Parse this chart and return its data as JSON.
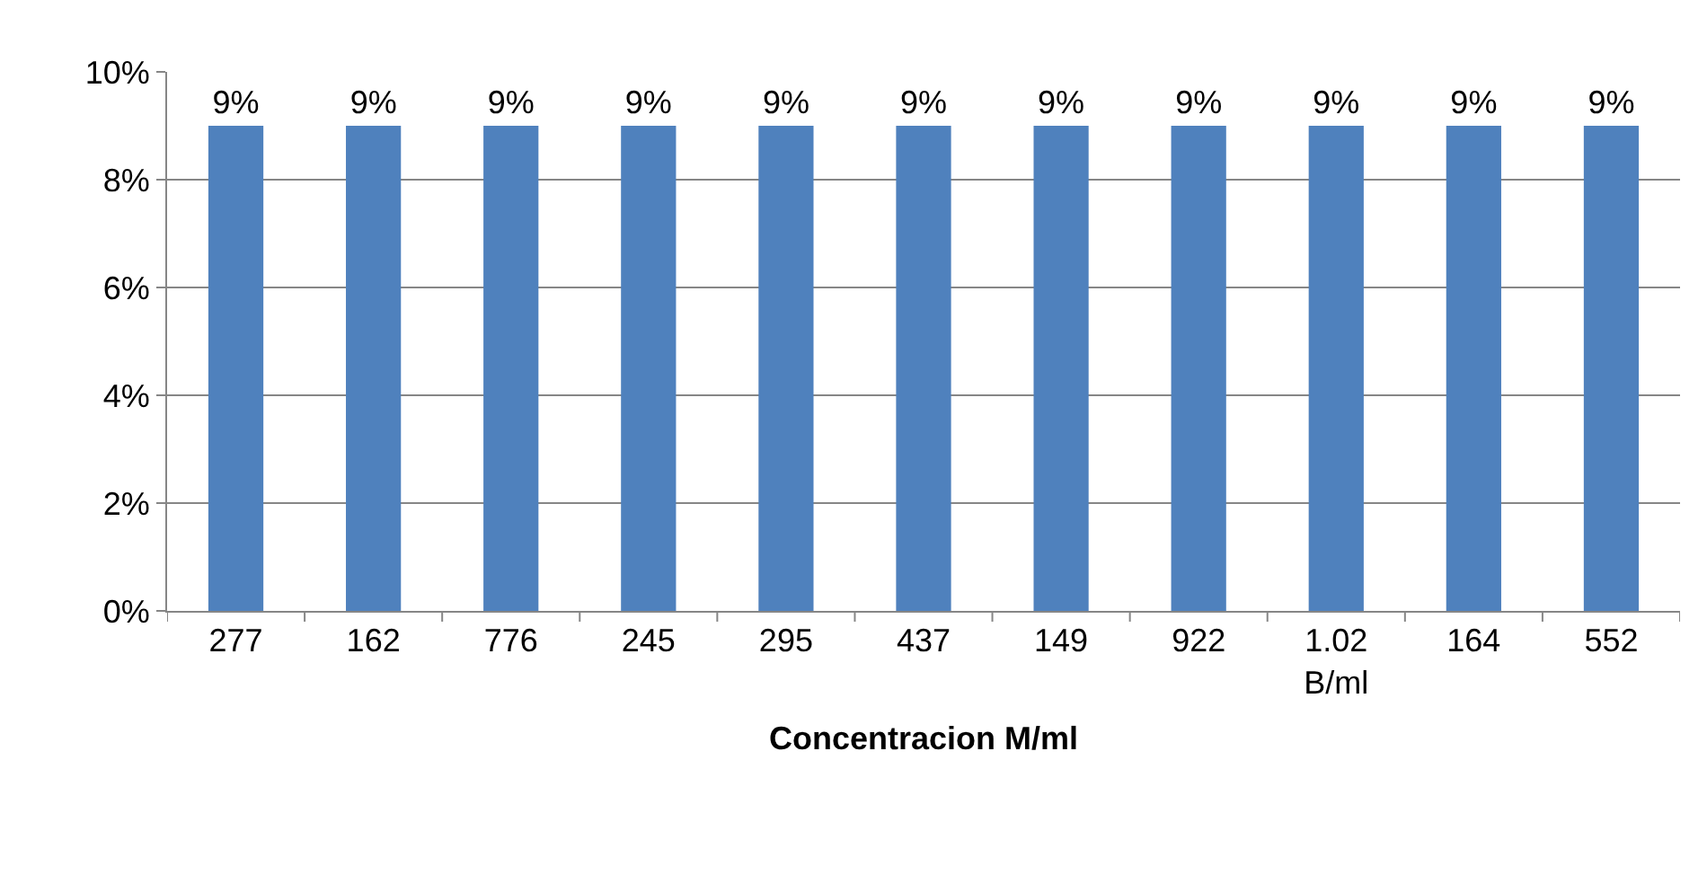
{
  "chart_data": {
    "type": "bar",
    "xlabel": "Concentracion M/ml",
    "categories": [
      "277",
      "162",
      "776",
      "245",
      "295",
      "437",
      "149",
      "922",
      "1.02\nB/ml",
      "164",
      "552"
    ],
    "values": [
      9,
      9,
      9,
      9,
      9,
      9,
      9,
      9,
      9,
      9,
      9
    ],
    "value_labels": [
      "9%",
      "9%",
      "9%",
      "9%",
      "9%",
      "9%",
      "9%",
      "9%",
      "9%",
      "9%",
      "9%"
    ],
    "color": "#4f81bd",
    "ylim": [
      0,
      10
    ],
    "yticks": [
      {
        "value": 0,
        "label": "0%"
      },
      {
        "value": 2,
        "label": "2%"
      },
      {
        "value": 4,
        "label": "4%"
      },
      {
        "value": 6,
        "label": "6%"
      },
      {
        "value": 8,
        "label": "8%"
      },
      {
        "value": 10,
        "label": "10%"
      }
    ],
    "grid": "y"
  }
}
